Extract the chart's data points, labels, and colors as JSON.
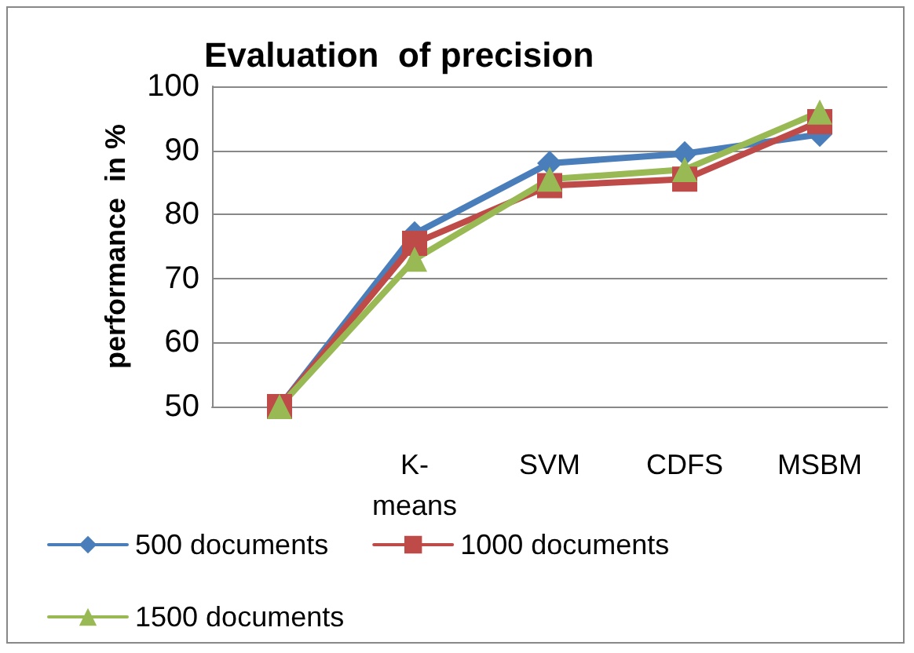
{
  "chart_data": {
    "type": "line",
    "title": "Evaluation  of precision",
    "ylabel": "performance  in %",
    "categories": [
      null,
      "K-means",
      "SVM",
      "CDFS",
      "MSBM"
    ],
    "series": [
      {
        "name": "500 documents",
        "color": "#4a7ebb",
        "marker": "diamond",
        "values": [
          50,
          77,
          88,
          89.5,
          92.5
        ]
      },
      {
        "name": "1000 documents",
        "color": "#be4b48",
        "marker": "square",
        "values": [
          50,
          75.5,
          84.5,
          85.5,
          94.5
        ]
      },
      {
        "name": "1500 documents",
        "color": "#98b954",
        "marker": "triangle",
        "values": [
          50,
          73,
          85.5,
          87,
          96
        ]
      }
    ],
    "ylim": [
      50,
      100
    ],
    "yticks": [
      50,
      60,
      70,
      80,
      90,
      100
    ],
    "grid": "y",
    "legend": "bottom"
  }
}
